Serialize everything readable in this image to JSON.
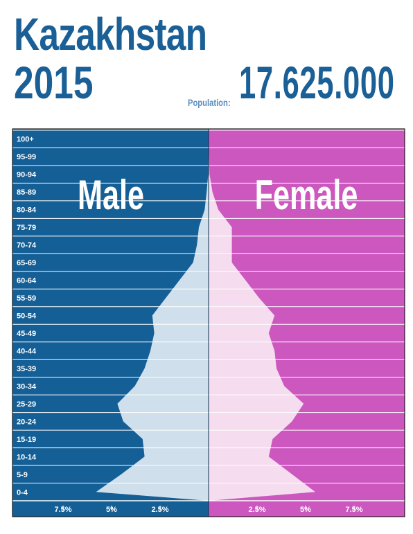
{
  "header": {
    "country": "Kazakhstan",
    "year": "2015",
    "population_label": "Population:",
    "population_value": "17.625.000"
  },
  "colors": {
    "male_bg": "#155f97",
    "female_bg": "#cc57bf",
    "male_fill": "#cfe0ec",
    "female_fill": "#f5dcef",
    "title": "#1a5f96"
  },
  "chart_data": {
    "type": "bar",
    "orientation": "horizontal-population-pyramid",
    "categories": [
      "0-4",
      "5-9",
      "10-14",
      "15-19",
      "20-24",
      "25-29",
      "30-34",
      "35-39",
      "40-44",
      "45-49",
      "50-54",
      "55-59",
      "60-64",
      "65-69",
      "70-74",
      "75-79",
      "80-84",
      "85-89",
      "90-94",
      "95-99",
      "100+"
    ],
    "series": [
      {
        "name": "Male",
        "values": [
          5.8,
          4.5,
          3.3,
          3.4,
          4.4,
          4.7,
          3.8,
          3.3,
          3.0,
          2.8,
          2.9,
          2.2,
          1.5,
          0.8,
          0.6,
          0.5,
          0.2,
          0.1,
          0.02,
          0.01,
          0.0
        ]
      },
      {
        "name": "Female",
        "values": [
          5.5,
          4.3,
          3.1,
          3.3,
          4.3,
          4.9,
          3.9,
          3.5,
          3.4,
          3.1,
          3.4,
          2.6,
          1.9,
          1.2,
          1.2,
          1.2,
          0.5,
          0.2,
          0.05,
          0.02,
          0.01
        ]
      }
    ],
    "panel_labels": {
      "left": "Male",
      "right": "Female"
    },
    "xticks_left": [
      "7.5%",
      "5%",
      "2.5%"
    ],
    "xticks_right": [
      "2.5%",
      "5%",
      "7.5%"
    ],
    "xlim": [
      0,
      10
    ],
    "grid": true
  }
}
